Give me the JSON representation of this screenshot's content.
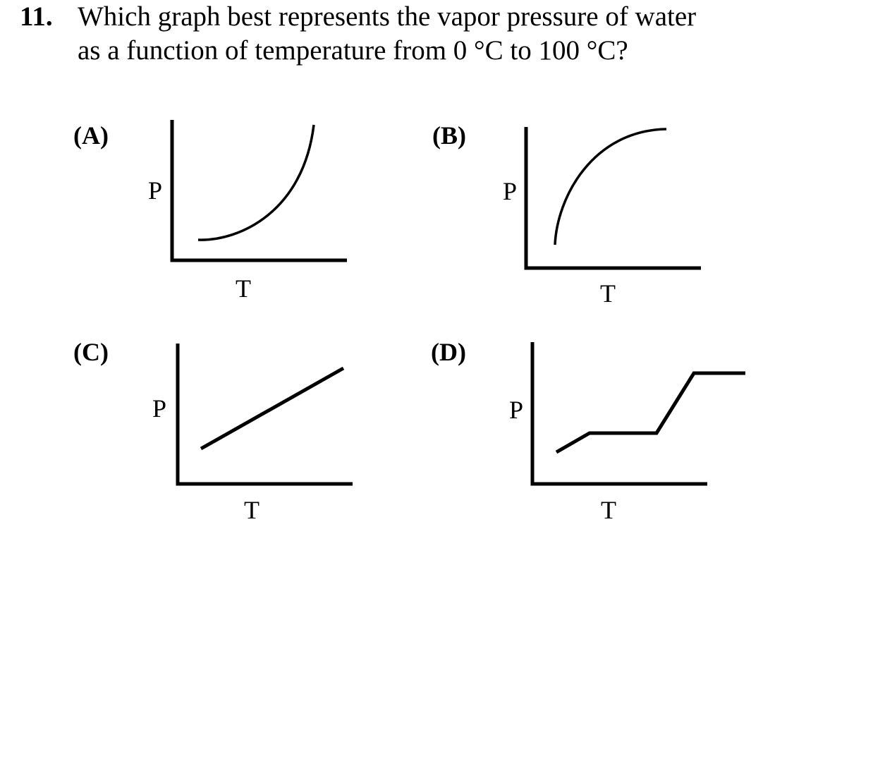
{
  "question": {
    "number": "11.",
    "line1": "Which graph best represents the vapor pressure of water",
    "line2": "as a function of temperature from 0 °C to 100 °C?"
  },
  "options": [
    {
      "label": "(A)",
      "y_axis": "P",
      "x_axis": "T",
      "curve_shape": "concave-up rising curve"
    },
    {
      "label": "(B)",
      "y_axis": "P",
      "x_axis": "T",
      "curve_shape": "concave-down rising curve"
    },
    {
      "label": "(C)",
      "y_axis": "P",
      "x_axis": "T",
      "curve_shape": "straight rising line"
    },
    {
      "label": "(D)",
      "y_axis": "P",
      "x_axis": "T",
      "curve_shape": "stepwise rising line"
    }
  ]
}
